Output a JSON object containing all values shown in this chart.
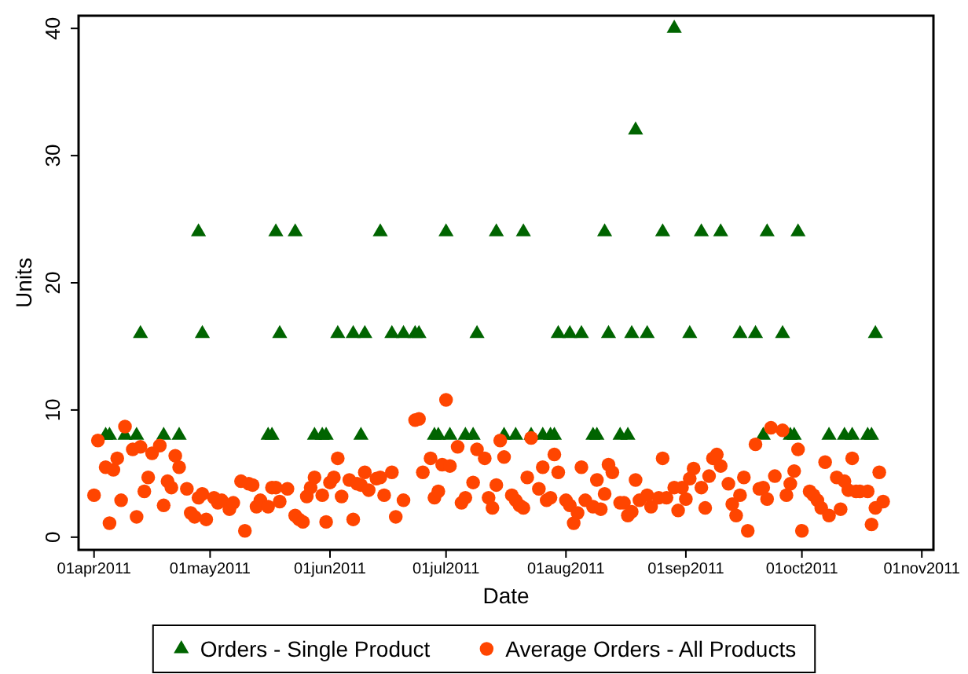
{
  "chart_data": {
    "type": "scatter",
    "xlabel": "Date",
    "ylabel": "Units",
    "legend": "bottom",
    "grid": false,
    "xlim": [
      "2011-03-28",
      "2011-11-04"
    ],
    "ylim": [
      -1,
      41
    ],
    "xticks": [
      {
        "value": "2011-04-01",
        "label": "01apr2011"
      },
      {
        "value": "2011-05-01",
        "label": "01may2011"
      },
      {
        "value": "2011-06-01",
        "label": "01jun2011"
      },
      {
        "value": "2011-07-01",
        "label": "01jul2011"
      },
      {
        "value": "2011-08-01",
        "label": "01aug2011"
      },
      {
        "value": "2011-09-01",
        "label": "01sep2011"
      },
      {
        "value": "2011-10-01",
        "label": "01oct2011"
      },
      {
        "value": "2011-11-01",
        "label": "01nov2011"
      }
    ],
    "yticks": [
      0,
      10,
      20,
      30,
      40
    ],
    "series": [
      {
        "name": "Orders - Single Product",
        "color": "#006400",
        "marker": "triangle",
        "x": [
          "2011-04-04",
          "2011-04-05",
          "2011-04-09",
          "2011-04-12",
          "2011-04-19",
          "2011-04-23",
          "2011-05-16",
          "2011-05-17",
          "2011-05-28",
          "2011-05-30",
          "2011-05-31",
          "2011-06-09",
          "2011-06-28",
          "2011-06-29",
          "2011-07-02",
          "2011-07-06",
          "2011-07-08",
          "2011-07-16",
          "2011-07-19",
          "2011-07-23",
          "2011-07-26",
          "2011-07-28",
          "2011-07-29",
          "2011-08-08",
          "2011-08-09",
          "2011-08-15",
          "2011-08-17",
          "2011-09-21",
          "2011-09-28",
          "2011-09-29",
          "2011-10-08",
          "2011-10-12",
          "2011-10-14",
          "2011-10-18",
          "2011-10-19",
          "2011-04-13",
          "2011-04-29",
          "2011-05-19",
          "2011-06-03",
          "2011-06-07",
          "2011-06-10",
          "2011-06-17",
          "2011-06-20",
          "2011-06-23",
          "2011-06-24",
          "2011-07-09",
          "2011-07-30",
          "2011-08-02",
          "2011-08-05",
          "2011-08-12",
          "2011-08-18",
          "2011-08-22",
          "2011-09-02",
          "2011-09-15",
          "2011-09-19",
          "2011-09-26",
          "2011-10-20",
          "2011-04-28",
          "2011-05-18",
          "2011-05-23",
          "2011-06-14",
          "2011-07-01",
          "2011-07-14",
          "2011-07-21",
          "2011-08-11",
          "2011-08-26",
          "2011-09-05",
          "2011-09-10",
          "2011-09-22",
          "2011-09-30",
          "2011-08-19",
          "2011-08-29"
        ],
        "values": [
          8,
          8,
          8,
          8,
          8,
          8,
          8,
          8,
          8,
          8,
          8,
          8,
          8,
          8,
          8,
          8,
          8,
          8,
          8,
          8,
          8,
          8,
          8,
          8,
          8,
          8,
          8,
          8,
          8,
          8,
          8,
          8,
          8,
          8,
          8,
          16,
          16,
          16,
          16,
          16,
          16,
          16,
          16,
          16,
          16,
          16,
          16,
          16,
          16,
          16,
          16,
          16,
          16,
          16,
          16,
          16,
          16,
          24,
          24,
          24,
          24,
          24,
          24,
          24,
          24,
          24,
          24,
          24,
          24,
          24,
          32,
          40
        ]
      },
      {
        "name": "Average Orders - All Products",
        "color": "#ff4500",
        "marker": "circle",
        "x": [
          "2011-04-01",
          "2011-04-02",
          "2011-04-04",
          "2011-04-05",
          "2011-04-06",
          "2011-04-07",
          "2011-04-08",
          "2011-04-09",
          "2011-04-11",
          "2011-04-12",
          "2011-04-13",
          "2011-04-14",
          "2011-04-15",
          "2011-04-16",
          "2011-04-18",
          "2011-04-19",
          "2011-04-20",
          "2011-04-21",
          "2011-04-22",
          "2011-04-23",
          "2011-04-25",
          "2011-04-26",
          "2011-04-27",
          "2011-04-28",
          "2011-04-29",
          "2011-04-30",
          "2011-05-02",
          "2011-05-03",
          "2011-05-04",
          "2011-05-06",
          "2011-05-07",
          "2011-05-09",
          "2011-05-10",
          "2011-05-11",
          "2011-05-12",
          "2011-05-13",
          "2011-05-14",
          "2011-05-16",
          "2011-05-17",
          "2011-05-18",
          "2011-05-19",
          "2011-05-21",
          "2011-05-23",
          "2011-05-24",
          "2011-05-25",
          "2011-05-26",
          "2011-05-27",
          "2011-05-28",
          "2011-05-30",
          "2011-05-31",
          "2011-06-01",
          "2011-06-02",
          "2011-06-03",
          "2011-06-04",
          "2011-06-06",
          "2011-06-07",
          "2011-06-08",
          "2011-06-09",
          "2011-06-10",
          "2011-06-11",
          "2011-06-13",
          "2011-06-14",
          "2011-06-15",
          "2011-06-17",
          "2011-06-18",
          "2011-06-20",
          "2011-06-23",
          "2011-06-24",
          "2011-06-25",
          "2011-06-27",
          "2011-06-28",
          "2011-06-29",
          "2011-06-30",
          "2011-07-01",
          "2011-07-02",
          "2011-07-04",
          "2011-07-05",
          "2011-07-06",
          "2011-07-08",
          "2011-07-09",
          "2011-07-11",
          "2011-07-12",
          "2011-07-13",
          "2011-07-14",
          "2011-07-15",
          "2011-07-16",
          "2011-07-18",
          "2011-07-19",
          "2011-07-20",
          "2011-07-21",
          "2011-07-22",
          "2011-07-23",
          "2011-07-25",
          "2011-07-26",
          "2011-07-27",
          "2011-07-28",
          "2011-07-29",
          "2011-07-30",
          "2011-08-01",
          "2011-08-02",
          "2011-08-03",
          "2011-08-04",
          "2011-08-05",
          "2011-08-06",
          "2011-08-08",
          "2011-08-09",
          "2011-08-10",
          "2011-08-11",
          "2011-08-12",
          "2011-08-13",
          "2011-08-15",
          "2011-08-16",
          "2011-08-17",
          "2011-08-18",
          "2011-08-19",
          "2011-08-20",
          "2011-08-22",
          "2011-08-23",
          "2011-08-25",
          "2011-08-26",
          "2011-08-27",
          "2011-08-29",
          "2011-08-30",
          "2011-08-31",
          "2011-09-01",
          "2011-09-02",
          "2011-09-03",
          "2011-09-05",
          "2011-09-06",
          "2011-09-07",
          "2011-09-08",
          "2011-09-09",
          "2011-09-10",
          "2011-09-12",
          "2011-09-13",
          "2011-09-14",
          "2011-09-15",
          "2011-09-16",
          "2011-09-17",
          "2011-09-19",
          "2011-09-20",
          "2011-09-21",
          "2011-09-22",
          "2011-09-23",
          "2011-09-24",
          "2011-09-26",
          "2011-09-27",
          "2011-09-28",
          "2011-09-29",
          "2011-09-30",
          "2011-10-01",
          "2011-10-03",
          "2011-10-04",
          "2011-10-05",
          "2011-10-06",
          "2011-10-07",
          "2011-10-08",
          "2011-10-10",
          "2011-10-11",
          "2011-10-12",
          "2011-10-13",
          "2011-10-14",
          "2011-10-15",
          "2011-10-16",
          "2011-10-18",
          "2011-10-19",
          "2011-10-20",
          "2011-10-21",
          "2011-10-22"
        ],
        "values": [
          3.3,
          7.6,
          5.5,
          1.1,
          5.3,
          6.2,
          2.9,
          8.7,
          6.9,
          1.6,
          7.1,
          3.6,
          4.7,
          6.6,
          7.2,
          2.5,
          4.4,
          3.9,
          6.4,
          5.5,
          3.8,
          1.9,
          1.6,
          3.1,
          3.4,
          1.4,
          3.1,
          2.7,
          2.9,
          2.2,
          2.7,
          4.4,
          0.5,
          4.2,
          4.1,
          2.4,
          2.9,
          2.4,
          3.9,
          3.9,
          2.8,
          3.8,
          1.7,
          1.4,
          1.2,
          3.2,
          3.9,
          4.7,
          3.3,
          1.2,
          4.3,
          4.7,
          6.2,
          3.2,
          4.5,
          1.4,
          4.2,
          4.1,
          5.1,
          3.7,
          4.6,
          4.7,
          3.3,
          5.1,
          1.6,
          2.9,
          9.2,
          9.3,
          5.1,
          6.2,
          3.1,
          3.6,
          5.7,
          10.8,
          5.6,
          7.1,
          2.7,
          3.1,
          4.3,
          6.9,
          6.2,
          3.1,
          2.3,
          4.1,
          7.6,
          6.3,
          3.3,
          2.9,
          2.5,
          2.3,
          4.7,
          7.8,
          3.8,
          5.5,
          2.9,
          3.1,
          6.5,
          5.1,
          2.9,
          2.5,
          1.1,
          1.9,
          5.5,
          2.9,
          2.4,
          4.5,
          2.2,
          3.4,
          5.7,
          5.1,
          2.7,
          2.7,
          1.7,
          2.0,
          4.5,
          2.9,
          3.3,
          2.4,
          3.1,
          6.2,
          3.1,
          3.9,
          2.1,
          3.9,
          3.0,
          4.6,
          5.4,
          3.9,
          2.3,
          4.8,
          6.2,
          6.5,
          5.6,
          4.2,
          2.6,
          1.7,
          3.3,
          4.7,
          0.5,
          7.3,
          3.8,
          3.9,
          3.0,
          8.6,
          4.8,
          8.4,
          3.3,
          4.2,
          5.2,
          6.9,
          0.5,
          3.6,
          3.3,
          2.9,
          2.3,
          5.9,
          1.7,
          4.7,
          2.2,
          4.4,
          3.7,
          6.2,
          3.6,
          3.6,
          3.6,
          1.0,
          2.3,
          5.1,
          2.8
        ]
      }
    ]
  }
}
